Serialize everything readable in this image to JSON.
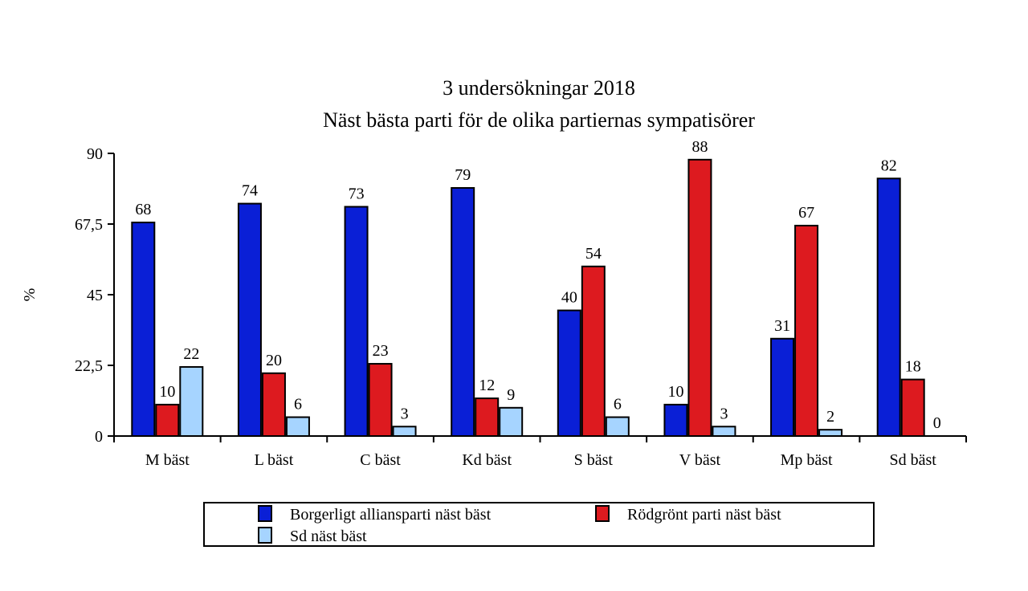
{
  "chart_data": {
    "type": "bar",
    "title": "3 undersökningar 2018",
    "subtitle": "Näst bästa parti för de olika partiernas sympatisörer",
    "xlabel": "",
    "ylabel": "%",
    "ylim": [
      0,
      90
    ],
    "yticks": [
      0,
      22.5,
      45,
      67.5,
      90
    ],
    "ytick_labels": [
      "0",
      "22,5",
      "45",
      "67,5",
      "90"
    ],
    "grid": false,
    "legend_position": "bottom",
    "categories": [
      "M bäst",
      "L bäst",
      "C bäst",
      "Kd bäst",
      "S bäst",
      "V bäst",
      "Mp bäst",
      "Sd bäst"
    ],
    "series": [
      {
        "name": "Borgerligt alliansparti näst bäst",
        "color": "#0a1fd6",
        "values": [
          68,
          74,
          73,
          79,
          40,
          10,
          31,
          82
        ]
      },
      {
        "name": "Rödgrönt parti näst bäst",
        "color": "#dd1a1f",
        "values": [
          10,
          20,
          23,
          12,
          54,
          88,
          67,
          18
        ]
      },
      {
        "name": "Sd näst bäst",
        "color": "#a6d4ff",
        "values": [
          22,
          6,
          3,
          9,
          6,
          3,
          2,
          0
        ]
      }
    ]
  }
}
